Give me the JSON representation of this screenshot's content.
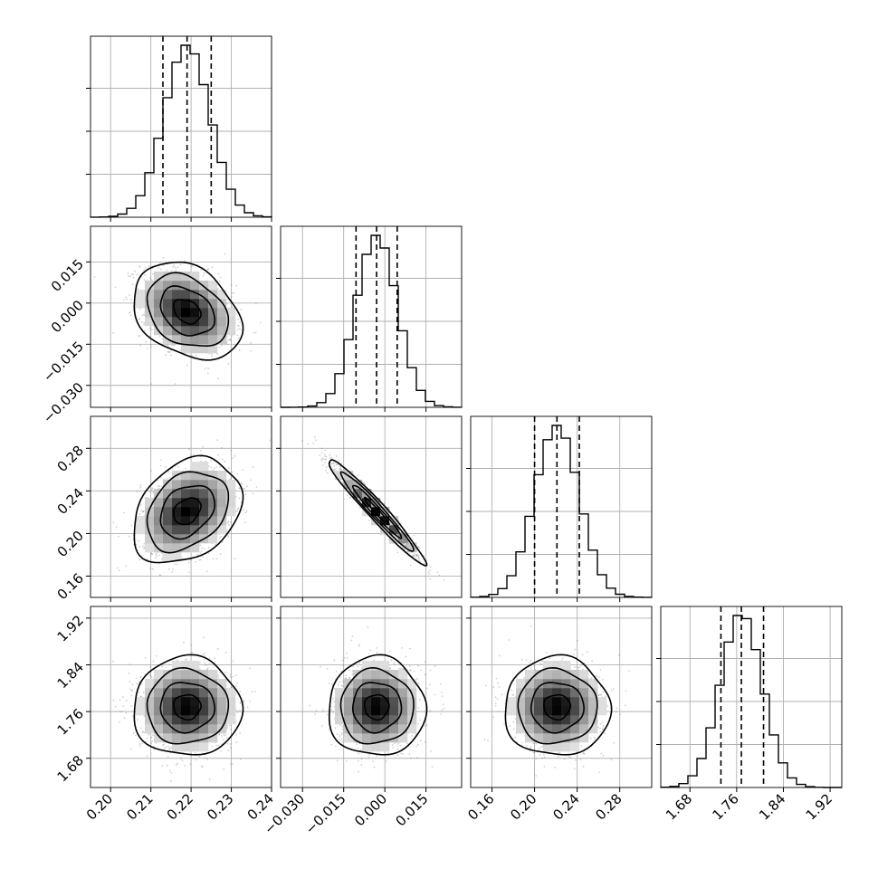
{
  "chart_data": {
    "type": "corner",
    "parameters": [
      {
        "range": [
          0.195,
          0.24
        ],
        "ticks": [
          0.2,
          0.21,
          0.22,
          0.23,
          0.24
        ],
        "tick_labels": [
          "0.20",
          "0.21",
          "0.22",
          "0.23",
          "0.24"
        ],
        "mean": 0.219,
        "sd": 0.0057,
        "quantiles": [
          0.213,
          0.219,
          0.225
        ]
      },
      {
        "range": [
          -0.038,
          0.028
        ],
        "ticks": [
          -0.03,
          -0.015,
          0.0,
          0.015
        ],
        "tick_labels": [
          "−0.030",
          "−0.015",
          "0.000",
          "0.015"
        ],
        "mean": -0.003,
        "sd": 0.0075,
        "quantiles": [
          -0.0105,
          -0.003,
          0.0045
        ]
      },
      {
        "range": [
          0.14,
          0.31
        ],
        "ticks": [
          0.16,
          0.2,
          0.24,
          0.28
        ],
        "tick_labels": [
          "0.16",
          "0.20",
          "0.24",
          "0.28"
        ],
        "mean": 0.221,
        "sd": 0.021,
        "quantiles": [
          0.2,
          0.221,
          0.242
        ]
      },
      {
        "range": [
          1.63,
          1.94
        ],
        "ticks": [
          1.68,
          1.76,
          1.84,
          1.92
        ],
        "tick_labels": [
          "1.68",
          "1.76",
          "1.84",
          "1.92"
        ],
        "mean": 1.768,
        "sd": 0.036,
        "quantiles": [
          1.733,
          1.768,
          1.806
        ]
      }
    ],
    "correlations": [
      [
        0,
        1,
        -0.3
      ],
      [
        0,
        2,
        0.3
      ],
      [
        1,
        2,
        -0.97
      ],
      [
        0,
        3,
        0.0
      ],
      [
        1,
        3,
        0.0
      ],
      [
        2,
        3,
        0.0
      ]
    ],
    "contour_levels_sigma": [
      0.5,
      1.0,
      1.5,
      2.0
    ],
    "grid": true,
    "quantile_style": "dashed"
  }
}
